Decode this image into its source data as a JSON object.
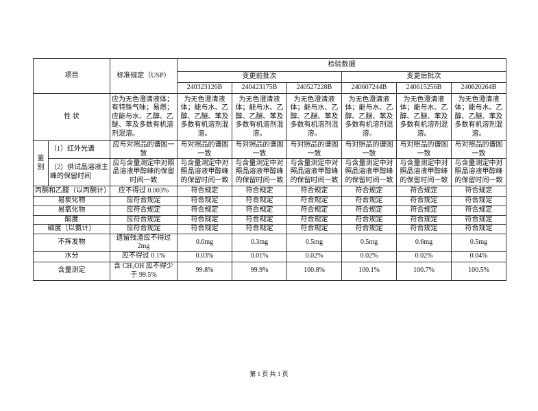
{
  "headers": {
    "item": "项目",
    "standard": "标准规定（USP）",
    "test_data": "检验数据",
    "before": "变更前批次",
    "after": "变更后批次",
    "batches": [
      "240323126B",
      "240423175B",
      "240527228B",
      "240607244B",
      "240615256B",
      "240620264B"
    ]
  },
  "appearance": {
    "item": "性 状",
    "standard": "应为无色澄清液体；有特殊气味；易燃；应能与水、乙醇、乙醚、苯及多数有机溶剂混溶。",
    "results": [
      "为无色澄清液体；能与水、乙醇、乙醚、苯及多数有机溶剂混溶。",
      "为无色澄清液体；能与水、乙醇、乙醚、苯及多数有机溶剂混溶。",
      "为无色澄清液体；能与水、乙醇、乙醚、苯及多数有机溶剂混溶。",
      "为无色澄清液体；能与水、乙醇、乙醚、苯及多数有机溶剂混溶。",
      "为无色澄清液体；能与水、乙醇、乙醚、苯及多数有机溶剂混溶。",
      "为无色澄清液体；能与水、乙醇、乙醚、苯及多数有机溶剂混溶。"
    ]
  },
  "identification": {
    "group": "鉴别",
    "rows": [
      {
        "item": "（1）红外光谱",
        "standard": "应与对照品的谱图一致",
        "results": [
          "与对照品的谱图一致",
          "与对照品的谱图一致",
          "与对照品的谱图一致",
          "与对照品的谱图一致",
          "与对照品的谱图一致",
          "与对照品的谱图一致"
        ]
      },
      {
        "item": "（2）供试品溶液主峰的保留时间",
        "standard": "应与含量测定中对照品溶液甲醇峰的保留时间一致",
        "results": [
          "与含量测定中对照品溶液甲醇峰的保留时间一致",
          "与含量测定中对照品溶液甲醇峰的保留时间一致",
          "与含量测定中对照品溶液甲醇峰的保留时间一致",
          "与含量测定中对照品溶液甲醇峰的保留时间一致",
          "与含量测定中对照品溶液甲醇峰的保留时间一致",
          "与含量测定中对照品溶液甲醇峰的保留时间一致"
        ]
      }
    ]
  },
  "rows": [
    {
      "item": "丙酮和乙醛（以丙酮计）",
      "standard": "应不得过 0.003%",
      "results": [
        "符合规定",
        "符合规定",
        "符合规定",
        "符合规定",
        "符合规定",
        "符合规定"
      ]
    },
    {
      "item": "易炭化物",
      "standard": "应符合规定",
      "results": [
        "符合规定",
        "符合规定",
        "符合规定",
        "符合规定",
        "符合规定",
        "符合规定"
      ]
    },
    {
      "item": "易氧化物",
      "standard": "应符合规定",
      "results": [
        "符合规定",
        "符合规定",
        "符合规定",
        "符合规定",
        "符合规定",
        "符合规定"
      ]
    },
    {
      "item": "酸度",
      "standard": "应符合规定",
      "results": [
        "符合规定",
        "符合规定",
        "符合规定",
        "符合规定",
        "符合规定",
        "符合规定"
      ]
    },
    {
      "item": "碱度（以氨计）",
      "standard": "应符合规定",
      "results": [
        "符合规定",
        "符合规定",
        "符合规定",
        "符合规定",
        "符合规定",
        "符合规定"
      ]
    },
    {
      "item": "不挥发物",
      "standard": "遗留残渣应不得过 2mg",
      "results": [
        "0.6mg",
        "0.3mg",
        "0.5mg",
        "0.5mg",
        "0.6mg",
        "0.5mg"
      ]
    },
    {
      "item": "水分",
      "standard": "应不得过 0.1%",
      "results": [
        "0.03%",
        "0.01%",
        "0.02%",
        "0.02%",
        "0.02%",
        "0.04%"
      ]
    },
    {
      "item": "含量测定",
      "standard": "含 CH₃OH 应不得少于 99.5%",
      "results": [
        "99.8%",
        "99.9%",
        "100.8%",
        "100.1%",
        "100.7%",
        "100.5%"
      ]
    }
  ],
  "footer": "第 1 页 共 1 页"
}
